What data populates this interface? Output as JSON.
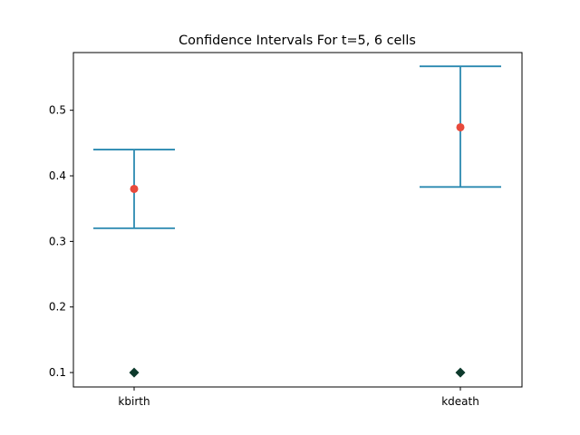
{
  "chart_data": {
    "type": "errorbar",
    "title": "Confidence Intervals For t=5, 6 cells",
    "xlabel": "",
    "ylabel": "",
    "categories": [
      "kbirth",
      "kdeath"
    ],
    "ylim": [
      0.078,
      0.588
    ],
    "yticks": [
      0.1,
      0.2,
      0.3,
      0.4,
      0.5
    ],
    "yticklabels": [
      "0.1",
      "0.2",
      "0.3",
      "0.4",
      "0.5"
    ],
    "grid": false,
    "intervals": [
      {
        "category": "kbirth",
        "lower": 0.32,
        "upper": 0.44,
        "estimate": 0.38,
        "true_value": 0.1
      },
      {
        "category": "kdeath",
        "lower": 0.383,
        "upper": 0.567,
        "estimate": 0.474,
        "true_value": 0.1
      }
    ],
    "colors": {
      "interval": "#2a89b0",
      "estimate": "#e84a3c",
      "true_value": "#0d3a2c"
    }
  }
}
